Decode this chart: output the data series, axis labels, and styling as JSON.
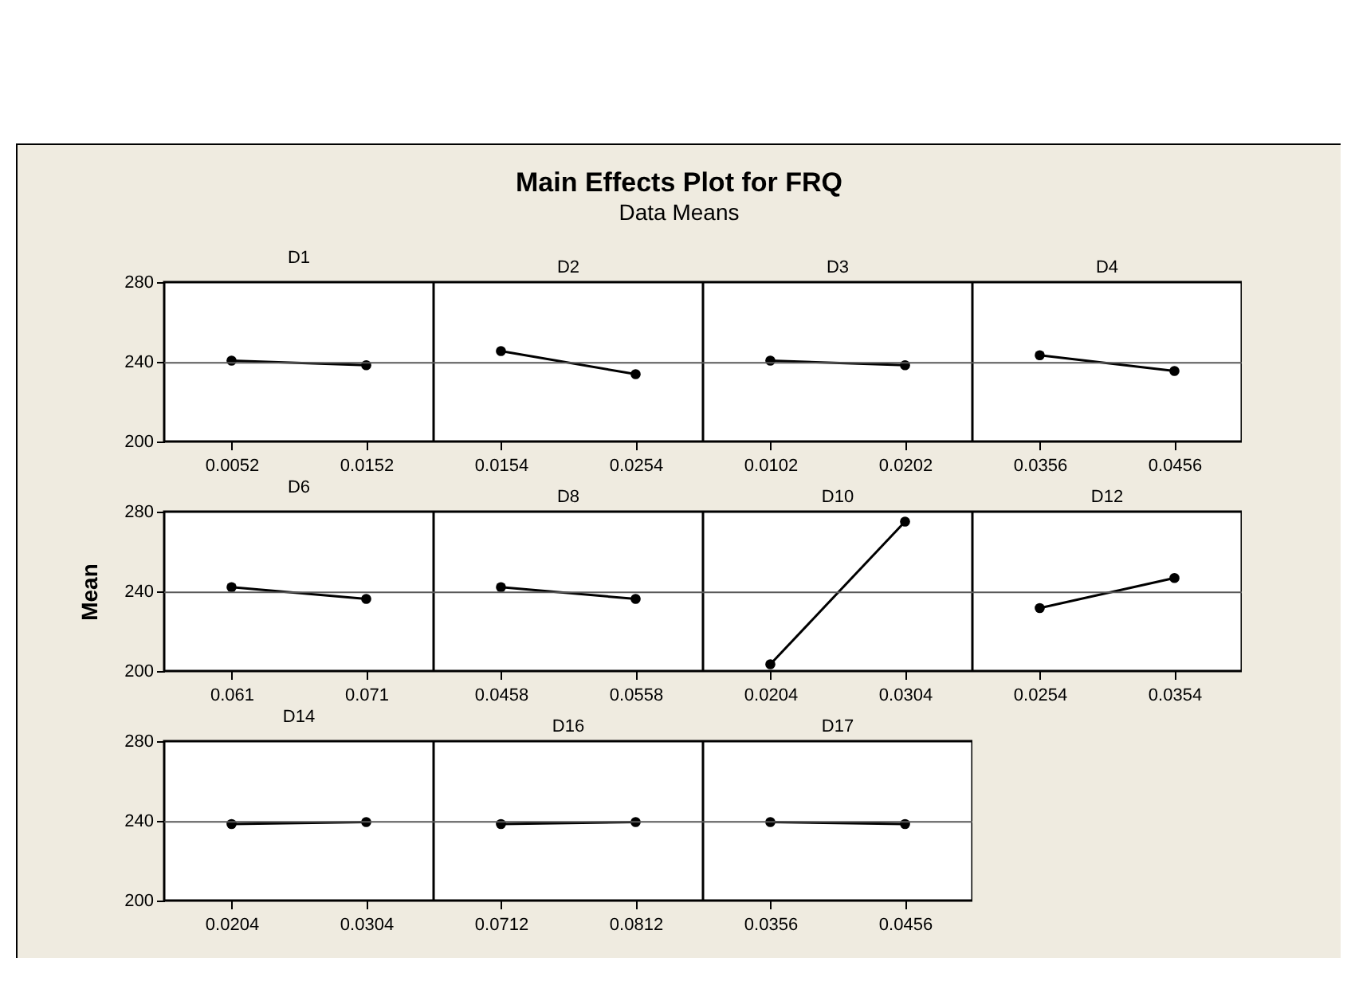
{
  "chart_data": [
    {
      "type": "other",
      "title": "Main Effects Plot for FRQ",
      "subtitle": "Data Means"
    },
    {
      "type": "line",
      "title": "D1",
      "categories": [
        "0.0052",
        "0.0152"
      ],
      "values": [
        240.6,
        238.3
      ],
      "color": "#000000",
      "marker": "circle",
      "ylim": [
        200,
        280
      ],
      "yticks": [
        200,
        240,
        280
      ],
      "ref_lines": [
        {
          "axis": "y",
          "value": 239.5,
          "color": "#595959"
        }
      ]
    },
    {
      "type": "line",
      "title": "D2",
      "categories": [
        "0.0154",
        "0.0254"
      ],
      "values": [
        245.4,
        233.8
      ],
      "color": "#000000",
      "marker": "circle",
      "ylim": [
        200,
        280
      ],
      "yticks": [
        200,
        240,
        280
      ],
      "tick_labels": "x",
      "ref_lines": [
        {
          "axis": "y",
          "value": 239.5,
          "color": "#595959"
        }
      ]
    },
    {
      "type": "line",
      "title": "D3",
      "categories": [
        "0.0102",
        "0.0202"
      ],
      "values": [
        240.6,
        238.3
      ],
      "color": "#000000",
      "marker": "circle",
      "ylim": [
        200,
        280
      ],
      "yticks": [
        200,
        240,
        280
      ],
      "tick_labels": "x",
      "ref_lines": [
        {
          "axis": "y",
          "value": 239.5,
          "color": "#595959"
        }
      ]
    },
    {
      "type": "line",
      "title": "D4",
      "categories": [
        "0.0356",
        "0.0456"
      ],
      "values": [
        243.3,
        235.4
      ],
      "color": "#000000",
      "marker": "circle",
      "ylim": [
        200,
        280
      ],
      "yticks": [
        200,
        240,
        280
      ],
      "tick_labels": "x",
      "ref_lines": [
        {
          "axis": "y",
          "value": 239.5,
          "color": "#595959"
        }
      ]
    },
    {
      "type": "line",
      "title": "D6",
      "ylabel": "Mean",
      "categories": [
        "0.061",
        "0.071"
      ],
      "values": [
        242.1,
        236.2
      ],
      "color": "#000000",
      "marker": "circle",
      "ylim": [
        200,
        280
      ],
      "yticks": [
        200,
        240,
        280
      ],
      "ref_lines": [
        {
          "axis": "y",
          "value": 239.5,
          "color": "#595959"
        }
      ]
    },
    {
      "type": "line",
      "title": "D8",
      "categories": [
        "0.0458",
        "0.0558"
      ],
      "values": [
        242.1,
        236.2
      ],
      "color": "#000000",
      "marker": "circle",
      "ylim": [
        200,
        280
      ],
      "yticks": [
        200,
        240,
        280
      ],
      "tick_labels": "x",
      "ref_lines": [
        {
          "axis": "y",
          "value": 239.5,
          "color": "#595959"
        }
      ]
    },
    {
      "type": "line",
      "title": "D10",
      "categories": [
        "0.0204",
        "0.0304"
      ],
      "values": [
        203.4,
        275
      ],
      "color": "#000000",
      "marker": "circle",
      "ylim": [
        200,
        280
      ],
      "yticks": [
        200,
        240,
        280
      ],
      "tick_labels": "x",
      "ref_lines": [
        {
          "axis": "y",
          "value": 239.5,
          "color": "#595959"
        }
      ]
    },
    {
      "type": "line",
      "title": "D12",
      "categories": [
        "0.0254",
        "0.0354"
      ],
      "values": [
        231.6,
        246.7
      ],
      "color": "#000000",
      "marker": "circle",
      "ylim": [
        200,
        280
      ],
      "yticks": [
        200,
        240,
        280
      ],
      "tick_labels": "x",
      "ref_lines": [
        {
          "axis": "y",
          "value": 239.5,
          "color": "#595959"
        }
      ]
    },
    {
      "type": "line",
      "title": "D14",
      "categories": [
        "0.0204",
        "0.0304"
      ],
      "values": [
        238.4,
        239.4
      ],
      "color": "#000000",
      "marker": "circle",
      "ylim": [
        200,
        280
      ],
      "yticks": [
        200,
        240,
        280
      ],
      "ref_lines": [
        {
          "axis": "y",
          "value": 239.5,
          "color": "#595959"
        }
      ]
    },
    {
      "type": "line",
      "title": "D16",
      "categories": [
        "0.0712",
        "0.0812"
      ],
      "values": [
        238.4,
        239.4
      ],
      "color": "#000000",
      "marker": "circle",
      "ylim": [
        200,
        280
      ],
      "yticks": [
        200,
        240,
        280
      ],
      "tick_labels": "x",
      "ref_lines": [
        {
          "axis": "y",
          "value": 239.5,
          "color": "#595959"
        }
      ]
    },
    {
      "type": "line",
      "title": "D17",
      "categories": [
        "0.0356",
        "0.0456"
      ],
      "values": [
        239.4,
        238.4
      ],
      "color": "#000000",
      "marker": "circle",
      "ylim": [
        200,
        280
      ],
      "yticks": [
        200,
        240,
        280
      ],
      "tick_labels": "x",
      "ref_lines": [
        {
          "axis": "y",
          "value": 239.5,
          "color": "#595959"
        }
      ]
    }
  ]
}
